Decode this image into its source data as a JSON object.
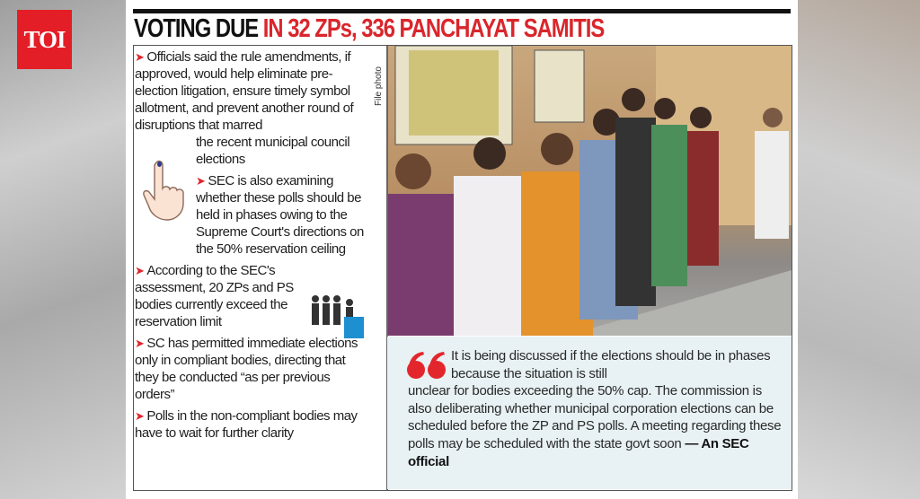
{
  "logo": "TOI",
  "headline": {
    "black": "VOTING DUE",
    "red": "IN 32 ZPs, 336 PANCHAYAT SAMITIS"
  },
  "photo_credit": "File photo",
  "bullets": [
    {
      "line1": "Officials said the rule amendments, if approved, would help eliminate pre-election litigation, ensure timely symbol allotment, and prevent another round of disruptions that marred",
      "line2": "the recent municipal council elections"
    },
    {
      "text": "SEC is also examining whether these polls should be held in phases owing to the Supreme Court's directions on the 50% reservation ceiling"
    },
    {
      "text": "According to the SEC's assessment, 20 ZPs and PS bodies currently exceed the reservation limit"
    },
    {
      "text": "SC has permitted immediate elections only in compliant bodies, directing that they be conducted “as per previous orders”"
    },
    {
      "text": "Polls in the non-compliant bodies may have to wait for further clarity"
    }
  ],
  "quote": {
    "first": "It is being discussed if the elections should be in phases because the situation is still",
    "rest": "unclear for bodies exceeding the 50% cap. The commission is also deliberating whether municipal corporation elections can be scheduled before the ZP and PS polls. A meeting regarding these polls may be scheduled with the state govt soon",
    "attribution": "— An SEC official"
  },
  "colors": {
    "accent": "#d9262c",
    "quote_bg": "#e8f1f4",
    "logo_bg": "#e41e26"
  },
  "icons": [
    "arrow-bullet-icon",
    "finger-ink-icon",
    "voters-queue-icon",
    "quote-mark-icon"
  ]
}
